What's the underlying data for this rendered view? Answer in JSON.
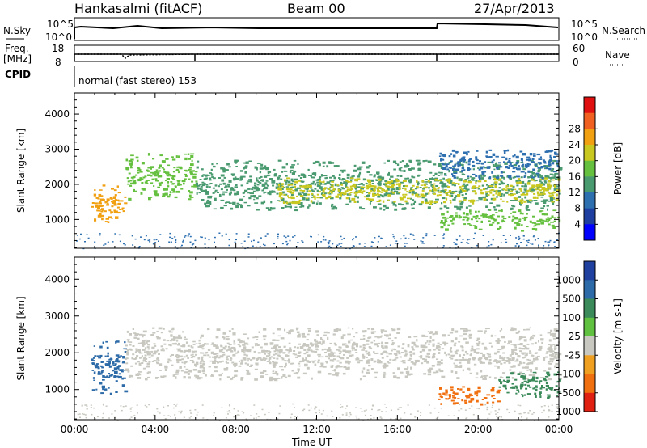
{
  "header": {
    "station": "Hankasalmi (fitACF)",
    "beam": "Beam 00",
    "date": "27/Apr/2013"
  },
  "noise": {
    "left_label": "N.Sky",
    "left_top": "10^5",
    "left_bottom": "10^0",
    "right_label": "N.Search",
    "right_top": "10^5",
    "right_bottom": "10^0"
  },
  "freq": {
    "left_label_line1": "Freq.",
    "left_label_line2": "[MHz]",
    "left_top": "18",
    "left_bottom": "8",
    "right_label": "Nave",
    "right_top": "60",
    "right_bottom": "0"
  },
  "cpid": {
    "label": "CPID",
    "text": "normal (fast stereo) 153"
  },
  "chart_data": [
    {
      "type": "heatmap",
      "title": "",
      "xlabel": "Time UT",
      "ylabel": "Slant Range [km]",
      "x_ticks": [
        "00:00",
        "04:00",
        "08:00",
        "12:00",
        "16:00",
        "20:00",
        "00:00"
      ],
      "y_ticks": [
        "1000",
        "2000",
        "3000",
        "4000"
      ],
      "ylim": [
        180,
        4600
      ],
      "colorbar": {
        "label": "Power [dB]",
        "ticks": [
          "4",
          "8",
          "12",
          "16",
          "20",
          "24",
          "28"
        ],
        "colors": [
          "#0000ff",
          "#1f3fa0",
          "#2e6fb0",
          "#4a9a70",
          "#66c040",
          "#c8c820",
          "#f0a010",
          "#f06020",
          "#e01010"
        ]
      },
      "features": [
        {
          "time_h": [
            0.8,
            2.5
          ],
          "range_km": [
            900,
            2000
          ],
          "level_db": 24
        },
        {
          "time_h": [
            2.5,
            6.0
          ],
          "range_km": [
            1600,
            2900
          ],
          "level_db": 14
        },
        {
          "time_h": [
            6.0,
            24.0
          ],
          "range_km": [
            1300,
            2700
          ],
          "level_db": 12
        },
        {
          "time_h": [
            10.0,
            24.0
          ],
          "range_km": [
            1500,
            2200
          ],
          "level_db": 20
        },
        {
          "time_h": [
            18.0,
            24.0
          ],
          "range_km": [
            2200,
            3000
          ],
          "level_db": 6
        },
        {
          "time_h": [
            18.0,
            24.0
          ],
          "range_km": [
            700,
            1300
          ],
          "level_db": 16
        }
      ]
    },
    {
      "type": "heatmap",
      "title": "",
      "xlabel": "Time UT",
      "ylabel": "Slant Range [km]",
      "x_ticks": [
        "00:00",
        "04:00",
        "08:00",
        "12:00",
        "16:00",
        "20:00",
        "00:00"
      ],
      "y_ticks": [
        "1000",
        "2000",
        "3000",
        "4000"
      ],
      "ylim": [
        180,
        4600
      ],
      "colorbar": {
        "label": "Velocity [m s-1]",
        "ticks": [
          "1000",
          "500",
          "100",
          "25",
          "-25",
          "-100",
          "-500",
          "-1000"
        ],
        "colors": [
          "#2040a0",
          "#2c6aa8",
          "#3a8a5a",
          "#60c040",
          "#c8c8c0",
          "#f0a020",
          "#f07010",
          "#e02010"
        ]
      },
      "features": [
        {
          "time_h": [
            0.8,
            2.5
          ],
          "range_km": [
            900,
            2400
          ],
          "velocity_ms": 300
        },
        {
          "time_h": [
            2.5,
            24.0
          ],
          "range_km": [
            1300,
            2700
          ],
          "velocity_ms": 0
        },
        {
          "time_h": [
            18.0,
            21.0
          ],
          "range_km": [
            600,
            1100
          ],
          "velocity_ms": -300
        },
        {
          "time_h": [
            21.0,
            24.0
          ],
          "range_km": [
            800,
            1500
          ],
          "velocity_ms": 150
        }
      ]
    }
  ]
}
